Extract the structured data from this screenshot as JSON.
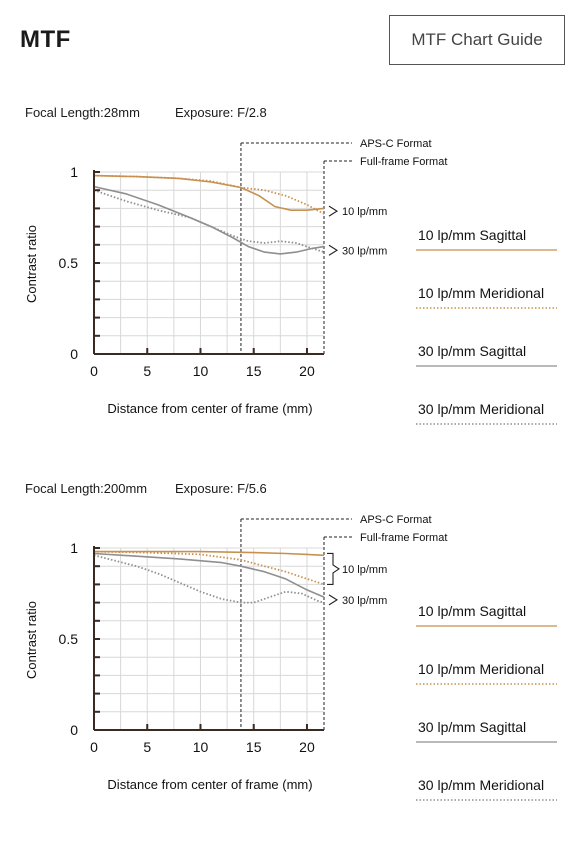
{
  "header": {
    "title": "MTF",
    "guide_button_label": "MTF Chart Guide"
  },
  "colors": {
    "sagittal_10": "#c8914f",
    "meridional_10": "#c8914f",
    "sagittal_30": "#8f8f8f",
    "meridional_30": "#8f8f8f",
    "axis": "#3a2a22",
    "grid": "#d8d8d8"
  },
  "chart_data": [
    {
      "type": "line",
      "focal_label": "Focal Length:28mm",
      "exposure_label": "Exposure: F/2.8",
      "xlabel": "Distance from center of frame (mm)",
      "ylabel": "Contrast ratio",
      "xlim": [
        0,
        21.6
      ],
      "ylim": [
        0,
        1
      ],
      "x_ticks": [
        0,
        5,
        10,
        15,
        20
      ],
      "y_tick_labels": [
        {
          "value": 1,
          "label": "1"
        },
        {
          "value": 0.5,
          "label": "0.5"
        },
        {
          "value": 0,
          "label": "0"
        }
      ],
      "grid": true,
      "format_markers": [
        {
          "x": 13.8,
          "label": "APS-C Format"
        },
        {
          "x": 21.6,
          "label": "Full-frame Format"
        }
      ],
      "bracket_labels": [
        {
          "label": "10 lp/mm",
          "y_range": [
            0.77,
            0.8
          ]
        },
        {
          "label": "30 lp/mm",
          "y_range": [
            0.55,
            0.59
          ]
        }
      ],
      "series": [
        {
          "name": "10 lp/mm Sagittal",
          "style": "solid",
          "color_key": "sagittal_10",
          "x": [
            0,
            4,
            8,
            11,
            13.8,
            15.5,
            17,
            18.5,
            20,
            21.6
          ],
          "y": [
            0.98,
            0.975,
            0.965,
            0.945,
            0.915,
            0.87,
            0.81,
            0.79,
            0.79,
            0.8
          ]
        },
        {
          "name": "10 lp/mm Meridional",
          "style": "dotted",
          "color_key": "meridional_10",
          "x": [
            0,
            4,
            8,
            11,
            13.8,
            16,
            18,
            20,
            21.6
          ],
          "y": [
            0.98,
            0.975,
            0.965,
            0.95,
            0.915,
            0.9,
            0.87,
            0.82,
            0.77
          ]
        },
        {
          "name": "30 lp/mm Sagittal",
          "style": "solid",
          "color_key": "sagittal_30",
          "x": [
            0,
            3,
            6,
            9,
            11,
            13,
            14.5,
            16,
            17.5,
            19,
            20.5,
            21.6
          ],
          "y": [
            0.92,
            0.88,
            0.82,
            0.75,
            0.7,
            0.64,
            0.59,
            0.56,
            0.55,
            0.56,
            0.58,
            0.59
          ]
        },
        {
          "name": "30 lp/mm Meridional",
          "style": "dotted",
          "color_key": "meridional_30",
          "x": [
            0,
            3,
            6,
            9,
            11,
            13,
            14.5,
            16,
            17.5,
            19,
            20.5,
            21.6
          ],
          "y": [
            0.9,
            0.84,
            0.79,
            0.75,
            0.7,
            0.65,
            0.62,
            0.61,
            0.62,
            0.61,
            0.58,
            0.56
          ]
        }
      ]
    },
    {
      "type": "line",
      "focal_label": "Focal Length:200mm",
      "exposure_label": "Exposure: F/5.6",
      "xlabel": "Distance from center of frame (mm)",
      "ylabel": "Contrast ratio",
      "xlim": [
        0,
        21.6
      ],
      "ylim": [
        0,
        1
      ],
      "x_ticks": [
        0,
        5,
        10,
        15,
        20
      ],
      "y_tick_labels": [
        {
          "value": 1,
          "label": "1"
        },
        {
          "value": 0.5,
          "label": "0.5"
        },
        {
          "value": 0,
          "label": "0"
        }
      ],
      "grid": true,
      "format_markers": [
        {
          "x": 13.8,
          "label": "APS-C Format"
        },
        {
          "x": 21.6,
          "label": "Full-frame Format"
        }
      ],
      "bracket_labels": [
        {
          "label": "10 lp/mm",
          "y_range": [
            0.8,
            0.97
          ]
        },
        {
          "label": "30 lp/mm",
          "y_range": [
            0.7,
            0.73
          ]
        }
      ],
      "series": [
        {
          "name": "10 lp/mm Sagittal",
          "style": "solid",
          "color_key": "sagittal_10",
          "x": [
            0,
            5,
            10,
            15,
            18,
            20,
            21.6
          ],
          "y": [
            0.98,
            0.98,
            0.98,
            0.975,
            0.97,
            0.965,
            0.96
          ]
        },
        {
          "name": "10 lp/mm Meridional",
          "style": "dotted",
          "color_key": "meridional_10",
          "x": [
            0,
            5,
            10,
            13.8,
            16,
            18,
            20,
            21.6
          ],
          "y": [
            0.98,
            0.975,
            0.965,
            0.935,
            0.9,
            0.87,
            0.83,
            0.8
          ]
        },
        {
          "name": "30 lp/mm Sagittal",
          "style": "solid",
          "color_key": "sagittal_30",
          "x": [
            0,
            4,
            8,
            12,
            13.8,
            16,
            18,
            20,
            21.6
          ],
          "y": [
            0.97,
            0.955,
            0.94,
            0.92,
            0.9,
            0.87,
            0.83,
            0.77,
            0.73
          ]
        },
        {
          "name": "30 lp/mm Meridional",
          "style": "dotted",
          "color_key": "meridional_30",
          "x": [
            0,
            2,
            4,
            6,
            8,
            10,
            12,
            13.8,
            15,
            16.5,
            18,
            19.5,
            21,
            21.6
          ],
          "y": [
            0.96,
            0.93,
            0.9,
            0.86,
            0.81,
            0.76,
            0.72,
            0.7,
            0.7,
            0.73,
            0.76,
            0.75,
            0.71,
            0.7
          ]
        }
      ]
    }
  ]
}
